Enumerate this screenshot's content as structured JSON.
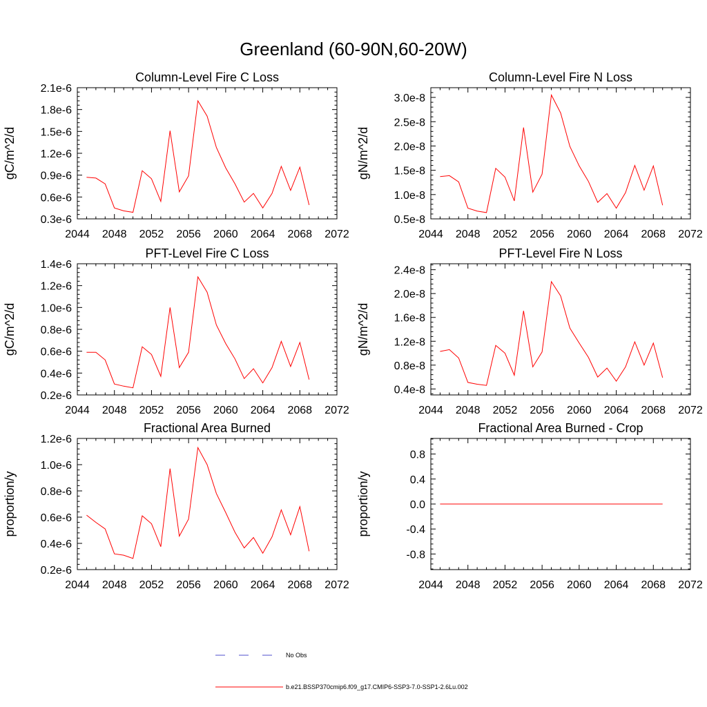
{
  "figure": {
    "title": "Greenland (60-90N,60-20W)"
  },
  "legend": {
    "entries": [
      {
        "label": "No Obs",
        "color": "#4d4dcc",
        "dash": "dashed"
      },
      {
        "label": "b.e21.BSSP370cmip6.f09_g17.CMIP6-SSP3-7.0-SSP1-2.6Lu.002",
        "color": "#ff0000",
        "dash": "solid"
      }
    ]
  },
  "chart_data": [
    {
      "type": "line",
      "title": "Column-Level Fire C Loss",
      "ylabel": "gC/m^2/d",
      "xlim": [
        2044,
        2072
      ],
      "ylim": [
        3e-07,
        2.1e-06
      ],
      "x_ticks": [
        2044,
        2048,
        2052,
        2056,
        2060,
        2064,
        2068,
        2072
      ],
      "y_ticks": [
        3e-07,
        6e-07,
        9e-07,
        1.2e-06,
        1.5e-06,
        1.8e-06,
        2.1e-06
      ],
      "y_tick_labels": [
        "0.3e-6",
        "0.6e-6",
        "0.9e-6",
        "1.2e-6",
        "1.5e-6",
        "1.8e-6",
        "2.1e-6"
      ],
      "series": [
        {
          "color": "#ff0000",
          "x": [
            2045,
            2046,
            2047,
            2048,
            2049,
            2050,
            2051,
            2052,
            2053,
            2054,
            2055,
            2056,
            2057,
            2058,
            2059,
            2060,
            2061,
            2062,
            2063,
            2064,
            2065,
            2066,
            2067,
            2068,
            2069
          ],
          "y": [
            8.7e-07,
            8.6e-07,
            7.8e-07,
            4.5e-07,
            4.1e-07,
            3.9e-07,
            9.6e-07,
            8.5e-07,
            5.4e-07,
            1.51e-06,
            6.7e-07,
            8.9e-07,
            1.92e-06,
            1.71e-06,
            1.28e-06,
            1e-06,
            7.8e-07,
            5.3e-07,
            6.5e-07,
            4.5e-07,
            6.5e-07,
            1.02e-06,
            6.9e-07,
            1.01e-06,
            4.9e-07
          ]
        }
      ]
    },
    {
      "type": "line",
      "title": "Column-Level Fire N Loss",
      "ylabel": "gN/m^2/d",
      "xlim": [
        2044,
        2072
      ],
      "ylim": [
        5e-09,
        3.2e-08
      ],
      "x_ticks": [
        2044,
        2048,
        2052,
        2056,
        2060,
        2064,
        2068,
        2072
      ],
      "y_ticks": [
        5e-09,
        1e-08,
        1.5e-08,
        2e-08,
        2.5e-08,
        3e-08
      ],
      "y_tick_labels": [
        "0.5e-8",
        "1.0e-8",
        "1.5e-8",
        "2.0e-8",
        "2.5e-8",
        "3.0e-8"
      ],
      "series": [
        {
          "color": "#ff0000",
          "x": [
            2045,
            2046,
            2047,
            2048,
            2049,
            2050,
            2051,
            2052,
            2053,
            2054,
            2055,
            2056,
            2057,
            2058,
            2059,
            2060,
            2061,
            2062,
            2063,
            2064,
            2065,
            2066,
            2067,
            2068,
            2069
          ],
          "y": [
            1.37e-08,
            1.39e-08,
            1.26e-08,
            7.2e-09,
            6.6e-09,
            6.3e-09,
            1.54e-08,
            1.36e-08,
            8.7e-09,
            2.38e-08,
            1.05e-08,
            1.42e-08,
            3.05e-08,
            2.68e-08,
            1.99e-08,
            1.59e-08,
            1.27e-08,
            8.4e-09,
            1.02e-08,
            7.2e-09,
            1.04e-08,
            1.6e-08,
            1.09e-08,
            1.59e-08,
            7.8e-09
          ]
        }
      ]
    },
    {
      "type": "line",
      "title": "PFT-Level Fire C Loss",
      "ylabel": "gC/m^2/d",
      "xlim": [
        2044,
        2072
      ],
      "ylim": [
        2e-07,
        1.4e-06
      ],
      "x_ticks": [
        2044,
        2048,
        2052,
        2056,
        2060,
        2064,
        2068,
        2072
      ],
      "y_ticks": [
        2e-07,
        4e-07,
        6e-07,
        8e-07,
        1e-06,
        1.2e-06,
        1.4e-06
      ],
      "y_tick_labels": [
        "0.2e-6",
        "0.4e-6",
        "0.6e-6",
        "0.8e-6",
        "1.0e-6",
        "1.2e-6",
        "1.4e-6"
      ],
      "series": [
        {
          "color": "#ff0000",
          "x": [
            2045,
            2046,
            2047,
            2048,
            2049,
            2050,
            2051,
            2052,
            2053,
            2054,
            2055,
            2056,
            2057,
            2058,
            2059,
            2060,
            2061,
            2062,
            2063,
            2064,
            2065,
            2066,
            2067,
            2068,
            2069
          ],
          "y": [
            5.9e-07,
            5.9e-07,
            5.2e-07,
            3e-07,
            2.8e-07,
            2.65e-07,
            6.4e-07,
            5.7e-07,
            3.7e-07,
            1e-06,
            4.5e-07,
            5.9e-07,
            1.28e-06,
            1.14e-06,
            8.4e-07,
            6.7e-07,
            5.3e-07,
            3.5e-07,
            4.4e-07,
            3.1e-07,
            4.5e-07,
            6.9e-07,
            4.6e-07,
            6.8e-07,
            3.4e-07
          ]
        }
      ]
    },
    {
      "type": "line",
      "title": "PFT-Level Fire N Loss",
      "ylabel": "gN/m^2/d",
      "xlim": [
        2044,
        2072
      ],
      "ylim": [
        3e-09,
        2.5e-08
      ],
      "x_ticks": [
        2044,
        2048,
        2052,
        2056,
        2060,
        2064,
        2068,
        2072
      ],
      "y_ticks": [
        4e-09,
        8e-09,
        1.2e-08,
        1.6e-08,
        2e-08,
        2.4e-08
      ],
      "y_tick_labels": [
        "0.4e-8",
        "0.8e-8",
        "1.2e-8",
        "1.6e-8",
        "2.0e-8",
        "2.4e-8"
      ],
      "series": [
        {
          "color": "#ff0000",
          "x": [
            2045,
            2046,
            2047,
            2048,
            2049,
            2050,
            2051,
            2052,
            2053,
            2054,
            2055,
            2056,
            2057,
            2058,
            2059,
            2060,
            2061,
            2062,
            2063,
            2064,
            2065,
            2066,
            2067,
            2068,
            2069
          ],
          "y": [
            1.03e-08,
            1.06e-08,
            9.2e-09,
            5.1e-09,
            4.8e-09,
            4.6e-09,
            1.13e-08,
            1e-08,
            6.3e-09,
            1.71e-08,
            7.7e-09,
            1.02e-08,
            2.2e-08,
            1.96e-08,
            1.42e-08,
            1.17e-08,
            9.3e-09,
            6e-09,
            7.5e-09,
            5.3e-09,
            7.7e-09,
            1.19e-08,
            8e-09,
            1.17e-08,
            5.9e-09
          ]
        }
      ]
    },
    {
      "type": "line",
      "title": "Fractional Area Burned",
      "ylabel": "proportion/y",
      "xlim": [
        2044,
        2072
      ],
      "ylim": [
        2e-07,
        1.2e-06
      ],
      "x_ticks": [
        2044,
        2048,
        2052,
        2056,
        2060,
        2064,
        2068,
        2072
      ],
      "y_ticks": [
        2e-07,
        4e-07,
        6e-07,
        8e-07,
        1e-06,
        1.2e-06
      ],
      "y_tick_labels": [
        "0.2e-6",
        "0.4e-6",
        "0.6e-6",
        "0.8e-6",
        "1.0e-6",
        "1.2e-6"
      ],
      "series": [
        {
          "color": "#ff0000",
          "x": [
            2045,
            2046,
            2047,
            2048,
            2049,
            2050,
            2051,
            2052,
            2053,
            2054,
            2055,
            2056,
            2057,
            2058,
            2059,
            2060,
            2061,
            2062,
            2063,
            2064,
            2065,
            2066,
            2067,
            2068,
            2069
          ],
          "y": [
            6.15e-07,
            5.6e-07,
            5.1e-07,
            3.2e-07,
            3.1e-07,
            2.85e-07,
            6.1e-07,
            5.5e-07,
            3.75e-07,
            9.7e-07,
            4.55e-07,
            5.85e-07,
            1.13e-06,
            1e-06,
            7.8e-07,
            6.35e-07,
            4.85e-07,
            3.65e-07,
            4.45e-07,
            3.25e-07,
            4.5e-07,
            6.55e-07,
            4.65e-07,
            6.8e-07,
            3.4e-07
          ]
        }
      ]
    },
    {
      "type": "line",
      "title": "Fractional Area Burned - Crop",
      "ylabel": "proportion/y",
      "xlim": [
        2044,
        2072
      ],
      "ylim": [
        -1.05,
        1.05
      ],
      "x_ticks": [
        2044,
        2048,
        2052,
        2056,
        2060,
        2064,
        2068,
        2072
      ],
      "y_ticks": [
        -0.8,
        -0.4,
        0.0,
        0.4,
        0.8
      ],
      "y_tick_labels": [
        "-0.8",
        "-0.4",
        "0.0",
        "0.4",
        "0.8"
      ],
      "series": [
        {
          "color": "#ff0000",
          "x": [
            2045,
            2069
          ],
          "y": [
            0,
            0
          ]
        }
      ]
    }
  ]
}
